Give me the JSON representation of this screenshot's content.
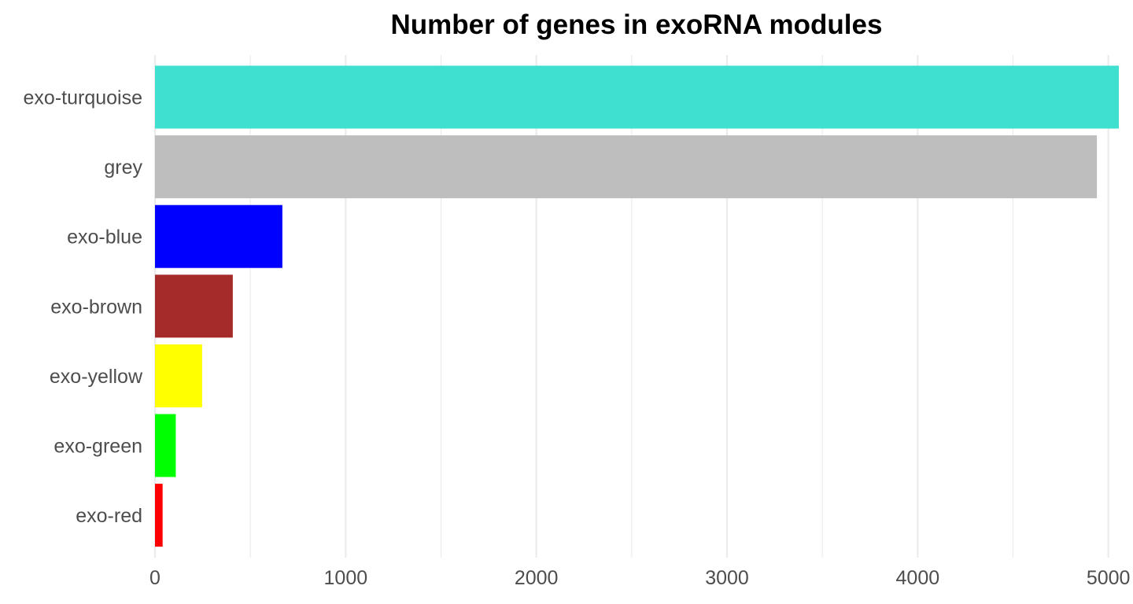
{
  "chart_data": {
    "type": "bar",
    "orientation": "horizontal",
    "title": "Number of genes in exoRNA modules",
    "xlabel": "",
    "ylabel": "",
    "categories": [
      "exo-turquoise",
      "grey",
      "exo-blue",
      "exo-brown",
      "exo-yellow",
      "exo-green",
      "exo-red"
    ],
    "values": [
      5055,
      4940,
      668,
      408,
      247,
      109,
      40
    ],
    "colors": [
      "#40E0D0",
      "#BEBEBE",
      "#0000FF",
      "#A52A2A",
      "#FFFF00",
      "#00FF00",
      "#FF0000"
    ],
    "xlim": [
      0,
      5055
    ],
    "xticks": [
      0,
      1000,
      2000,
      3000,
      4000,
      5000
    ],
    "xtick_labels": [
      "0",
      "1000",
      "2000",
      "3000",
      "4000",
      "5000"
    ],
    "grid": true,
    "legend": "none"
  }
}
